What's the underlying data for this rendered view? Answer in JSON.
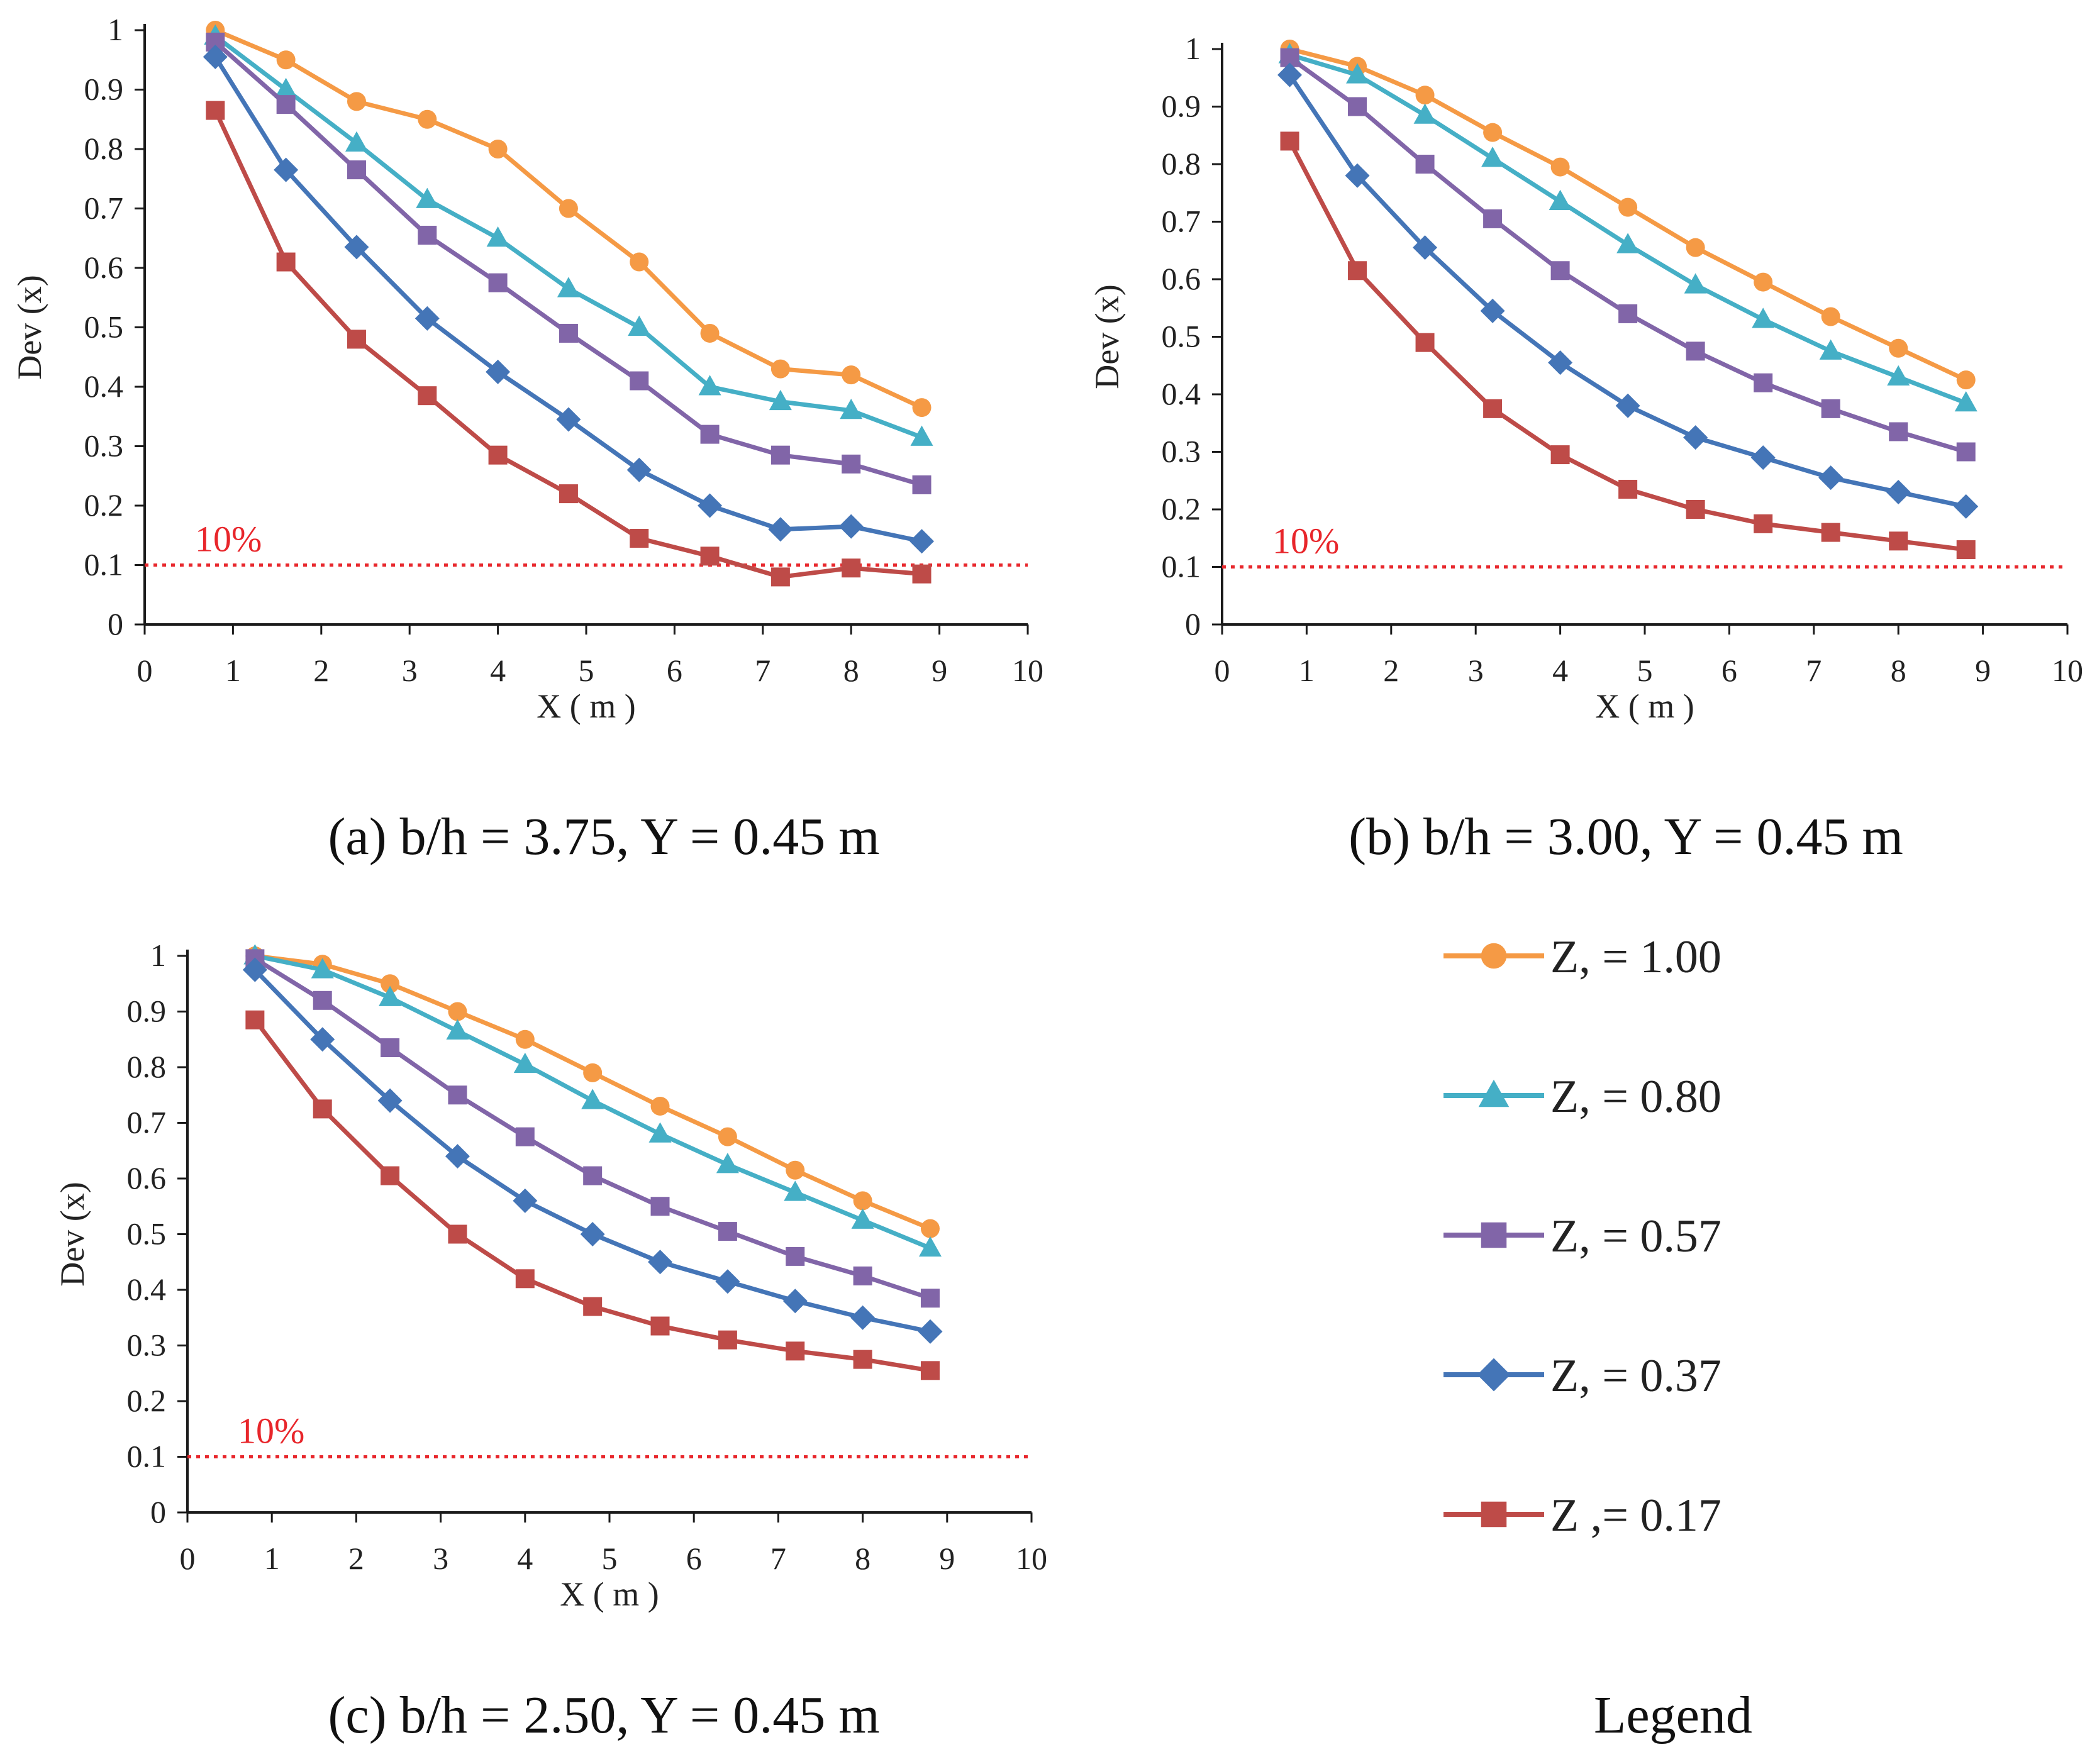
{
  "legend": {
    "title": "Legend",
    "entries": [
      {
        "label": "Z, = 1.00",
        "color": "#F59A45",
        "marker": "circle"
      },
      {
        "label": "Z, = 0.80",
        "color": "#45AFC6",
        "marker": "triangle"
      },
      {
        "label": "Z, = 0.57",
        "color": "#8165A8",
        "marker": "square"
      },
      {
        "label": "Z, = 0.37",
        "color": "#4475B7",
        "marker": "diamond"
      },
      {
        "label": "Z ,= 0.17",
        "color": "#BE4B48",
        "marker": "square"
      }
    ]
  },
  "chart_data": [
    {
      "type": "line",
      "caption": "(a) b/h = 3.75, Y = 0.45 m",
      "xlabel": "X ( m )",
      "ylabel": "Dev (x)",
      "xlim": [
        0,
        10
      ],
      "ylim": [
        0,
        1
      ],
      "xticks": [
        "0",
        "1",
        "2",
        "3",
        "4",
        "5",
        "6",
        "7",
        "8",
        "9",
        "10"
      ],
      "yticks": [
        "0",
        "0.1",
        "0.2",
        "0.3",
        "0.4",
        "0.5",
        "0.6",
        "0.7",
        "0.8",
        "0.9",
        "1"
      ],
      "threshold": {
        "value": 0.1,
        "label": "10%",
        "color": "#E8262B"
      },
      "x": [
        0.8,
        1.6,
        2.4,
        3.2,
        4.0,
        4.8,
        5.6,
        6.4,
        7.2,
        8.0,
        8.8
      ],
      "series": [
        {
          "name": "Z, = 1.00",
          "values": [
            1.0,
            0.95,
            0.88,
            0.85,
            0.8,
            0.7,
            0.61,
            0.49,
            0.43,
            0.42,
            0.365
          ]
        },
        {
          "name": "Z, = 0.80",
          "values": [
            0.99,
            0.9,
            0.81,
            0.715,
            0.65,
            0.565,
            0.5,
            0.4,
            0.375,
            0.36,
            0.315
          ]
        },
        {
          "name": "Z, = 0.57",
          "values": [
            0.98,
            0.875,
            0.765,
            0.655,
            0.575,
            0.49,
            0.41,
            0.32,
            0.285,
            0.27,
            0.235
          ]
        },
        {
          "name": "Z, = 0.37",
          "values": [
            0.955,
            0.765,
            0.635,
            0.515,
            0.425,
            0.345,
            0.26,
            0.2,
            0.16,
            0.165,
            0.14
          ]
        },
        {
          "name": "Z ,= 0.17",
          "values": [
            0.865,
            0.61,
            0.48,
            0.385,
            0.285,
            0.22,
            0.145,
            0.115,
            0.08,
            0.095,
            0.085
          ]
        }
      ]
    },
    {
      "type": "line",
      "caption": "(b) b/h = 3.00, Y = 0.45 m",
      "xlabel": "X ( m )",
      "ylabel": "Dev (x)",
      "xlim": [
        0,
        10
      ],
      "ylim": [
        0,
        1
      ],
      "xticks": [
        "0",
        "1",
        "2",
        "3",
        "4",
        "5",
        "6",
        "7",
        "8",
        "9",
        "10"
      ],
      "yticks": [
        "0",
        "0.1",
        "0.2",
        "0.3",
        "0.4",
        "0.5",
        "0.6",
        "0.7",
        "0.8",
        "0.9",
        "1"
      ],
      "threshold": {
        "value": 0.1,
        "label": "10%",
        "color": "#E8262B"
      },
      "x": [
        0.8,
        1.6,
        2.4,
        3.2,
        4.0,
        4.8,
        5.6,
        6.4,
        7.2,
        8.0,
        8.8
      ],
      "series": [
        {
          "name": "Z, = 1.00",
          "values": [
            1.0,
            0.97,
            0.92,
            0.855,
            0.795,
            0.725,
            0.655,
            0.595,
            0.535,
            0.48,
            0.425
          ]
        },
        {
          "name": "Z, = 0.80",
          "values": [
            0.99,
            0.955,
            0.885,
            0.81,
            0.735,
            0.66,
            0.59,
            0.53,
            0.475,
            0.43,
            0.385
          ]
        },
        {
          "name": "Z, = 0.57",
          "values": [
            0.985,
            0.9,
            0.8,
            0.705,
            0.615,
            0.54,
            0.475,
            0.42,
            0.375,
            0.335,
            0.3
          ]
        },
        {
          "name": "Z, = 0.37",
          "values": [
            0.955,
            0.78,
            0.655,
            0.545,
            0.455,
            0.38,
            0.325,
            0.29,
            0.255,
            0.23,
            0.205
          ]
        },
        {
          "name": "Z ,= 0.17",
          "values": [
            0.84,
            0.615,
            0.49,
            0.375,
            0.295,
            0.235,
            0.2,
            0.175,
            0.16,
            0.145,
            0.13
          ]
        }
      ]
    },
    {
      "type": "line",
      "caption": "(c) b/h = 2.50, Y = 0.45 m",
      "xlabel": "X ( m )",
      "ylabel": "Dev (x)",
      "xlim": [
        0,
        10
      ],
      "ylim": [
        0,
        1
      ],
      "xticks": [
        "0",
        "1",
        "2",
        "3",
        "4",
        "5",
        "6",
        "7",
        "8",
        "9",
        "10"
      ],
      "yticks": [
        "0",
        "0.1",
        "0.2",
        "0.3",
        "0.4",
        "0.5",
        "0.6",
        "0.7",
        "0.8",
        "0.9",
        "1"
      ],
      "threshold": {
        "value": 0.1,
        "label": "10%",
        "color": "#E8262B"
      },
      "x": [
        0.8,
        1.6,
        2.4,
        3.2,
        4.0,
        4.8,
        5.6,
        6.4,
        7.2,
        8.0,
        8.8
      ],
      "series": [
        {
          "name": "Z, = 1.00",
          "values": [
            1.0,
            0.985,
            0.95,
            0.9,
            0.85,
            0.79,
            0.73,
            0.675,
            0.615,
            0.56,
            0.51
          ]
        },
        {
          "name": "Z, = 0.80",
          "values": [
            1.0,
            0.975,
            0.925,
            0.865,
            0.805,
            0.74,
            0.68,
            0.625,
            0.575,
            0.525,
            0.475
          ]
        },
        {
          "name": "Z, = 0.57",
          "values": [
            0.995,
            0.92,
            0.835,
            0.75,
            0.675,
            0.605,
            0.55,
            0.505,
            0.46,
            0.425,
            0.385
          ]
        },
        {
          "name": "Z, = 0.37",
          "values": [
            0.975,
            0.85,
            0.74,
            0.64,
            0.56,
            0.5,
            0.45,
            0.415,
            0.38,
            0.35,
            0.325
          ]
        },
        {
          "name": "Z ,= 0.17",
          "values": [
            0.885,
            0.725,
            0.605,
            0.5,
            0.42,
            0.37,
            0.335,
            0.31,
            0.29,
            0.275,
            0.255
          ]
        }
      ]
    }
  ]
}
